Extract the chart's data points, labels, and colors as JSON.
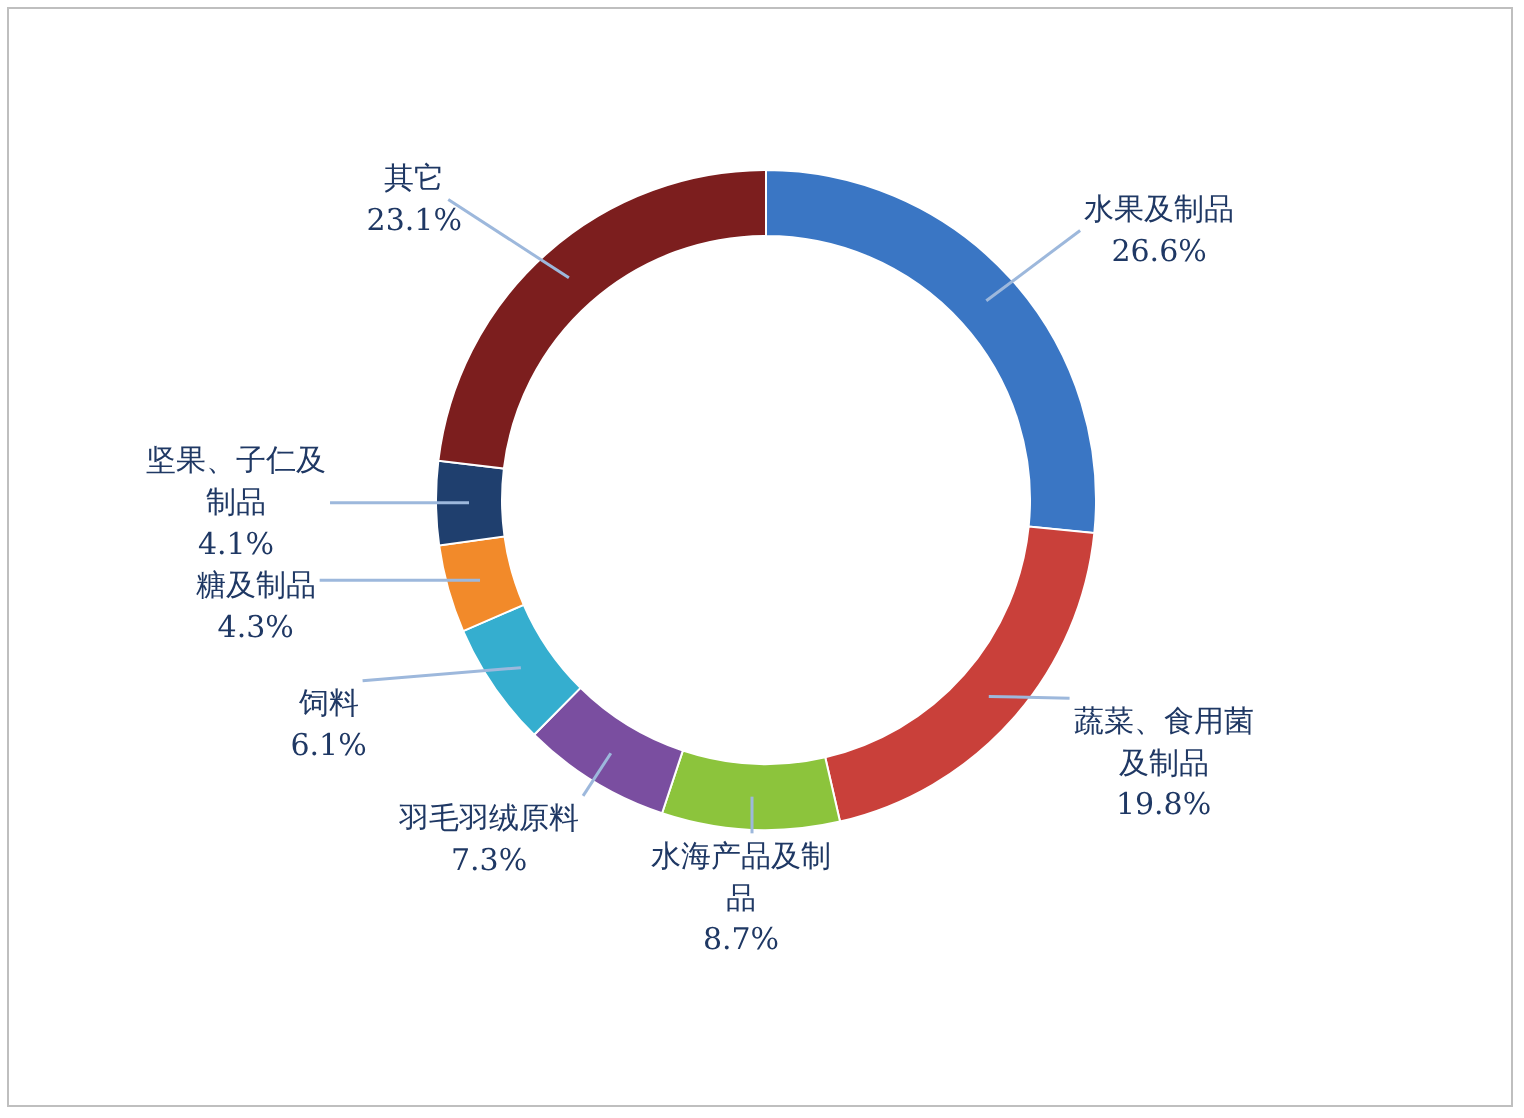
{
  "chart_data": {
    "type": "donut",
    "categories": [
      "水果及制品",
      "蔬菜、食用菌及制品",
      "水海产品及制品",
      "羽毛羽绒原料",
      "饲料",
      "糖及制品",
      "坚果、子仁及制品",
      "其它"
    ],
    "values": [
      26.6,
      19.8,
      8.7,
      7.3,
      6.1,
      4.3,
      4.1,
      23.1
    ],
    "value_labels": [
      "26.6%",
      "19.8%",
      "8.7%",
      "7.3%",
      "6.1%",
      "4.3%",
      "4.1%",
      "23.1%"
    ],
    "colors": [
      "#3a76c4",
      "#c9403a",
      "#8cc43c",
      "#7a4ea0",
      "#35aecf",
      "#f28a2a",
      "#1f3f6e",
      "#7c1e1e"
    ]
  }
}
